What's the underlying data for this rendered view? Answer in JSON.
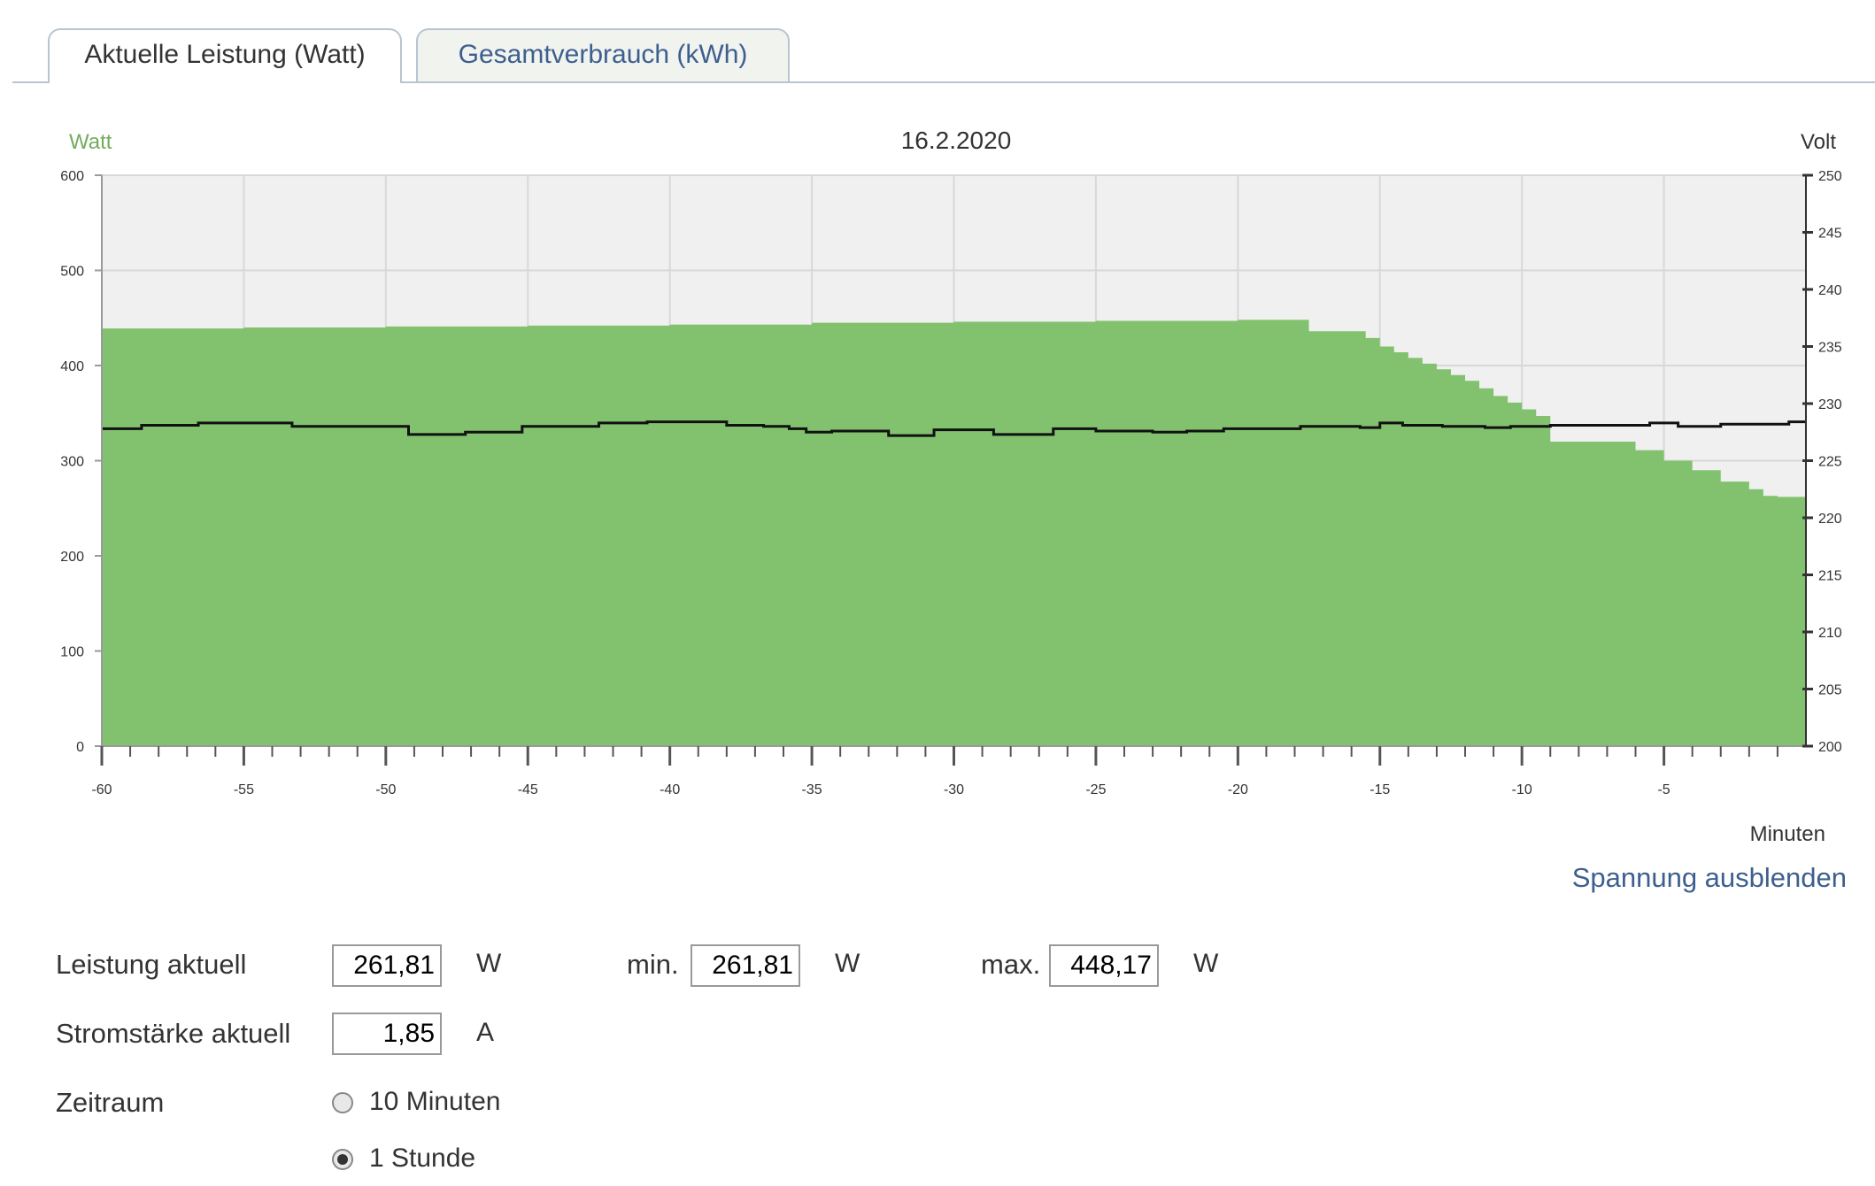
{
  "tabs": [
    {
      "label": "Aktuelle Leistung (Watt)",
      "active": true
    },
    {
      "label": "Gesamtverbrauch (kWh)",
      "active": false
    }
  ],
  "chart_data": {
    "type": "area",
    "title": "16.2.2020",
    "xlabel": "Minuten",
    "ylabel": "Watt",
    "y2label": "Volt",
    "xlim": [
      -60,
      0
    ],
    "ylim": [
      0,
      600
    ],
    "y2lim": [
      200,
      250
    ],
    "xticks": [
      -60,
      -55,
      -50,
      -45,
      -40,
      -35,
      -30,
      -25,
      -20,
      -15,
      -10,
      -5
    ],
    "yticks": [
      0,
      100,
      200,
      300,
      400,
      500,
      600
    ],
    "y2ticks": [
      200,
      205,
      210,
      215,
      220,
      225,
      230,
      235,
      240,
      245,
      250
    ],
    "grid": true,
    "colors": {
      "power": "#82c26f",
      "voltage": "#111111",
      "plot_bg": "#f0f0f0",
      "grid": "#d8d8d8"
    },
    "series": [
      {
        "name": "Leistung",
        "axis": "left",
        "style": "step-area",
        "x": [
          -60,
          -55,
          -50,
          -45,
          -40,
          -35,
          -30,
          -25,
          -20,
          -17.5,
          -16,
          -15.5,
          -15,
          -14.5,
          -14,
          -13.5,
          -13,
          -12.5,
          -12,
          -11.5,
          -11,
          -10.5,
          -10,
          -9.5,
          -9,
          -7,
          -6,
          -5,
          -4,
          -3,
          -2,
          -1.5,
          -1,
          -0.5
        ],
        "values": [
          439,
          440,
          441,
          442,
          443,
          445,
          446,
          447,
          448,
          436,
          436,
          429,
          420,
          414,
          408,
          402,
          396,
          390,
          384,
          376,
          368,
          361,
          354,
          347,
          320,
          320,
          311,
          300,
          290,
          278,
          270,
          263,
          262,
          262
        ]
      },
      {
        "name": "Spannung",
        "axis": "right",
        "style": "step-line",
        "x": [
          -60,
          -58.6,
          -56.6,
          -53.3,
          -49.2,
          -47.2,
          -45.2,
          -42.5,
          -40.8,
          -38.0,
          -36.7,
          -35.8,
          -35.2,
          -34.3,
          -32.3,
          -30.7,
          -28.6,
          -26.5,
          -25.0,
          -23.0,
          -21.8,
          -20.5,
          -17.8,
          -15.7,
          -15.0,
          -14.2,
          -12.8,
          -11.3,
          -10.4,
          -9.0,
          -6.8,
          -5.5,
          -4.5,
          -3.0,
          -1.2,
          -0.6
        ],
        "values": [
          227.8,
          228.1,
          228.3,
          228.0,
          227.3,
          227.5,
          228.0,
          228.3,
          228.4,
          228.1,
          228.0,
          227.8,
          227.5,
          227.6,
          227.2,
          227.7,
          227.3,
          227.8,
          227.6,
          227.5,
          227.6,
          227.8,
          228.0,
          227.9,
          228.3,
          228.1,
          228.0,
          227.9,
          228.0,
          228.1,
          228.1,
          228.3,
          228.0,
          228.2,
          228.2,
          228.4
        ]
      }
    ]
  },
  "toggle_link": "Spannung ausblenden",
  "stats": {
    "power": {
      "label": "Leistung aktuell",
      "value": "261,81",
      "unit": "W"
    },
    "min": {
      "label": "min.",
      "value": "261,81",
      "unit": "W"
    },
    "max": {
      "label": "max.",
      "value": "448,17",
      "unit": "W"
    },
    "current": {
      "label": "Stromstärke aktuell",
      "value": "1,85",
      "unit": "A"
    }
  },
  "period": {
    "label": "Zeitraum",
    "options": [
      {
        "label": "10 Minuten",
        "selected": false
      },
      {
        "label": "1 Stunde",
        "selected": true
      }
    ]
  }
}
